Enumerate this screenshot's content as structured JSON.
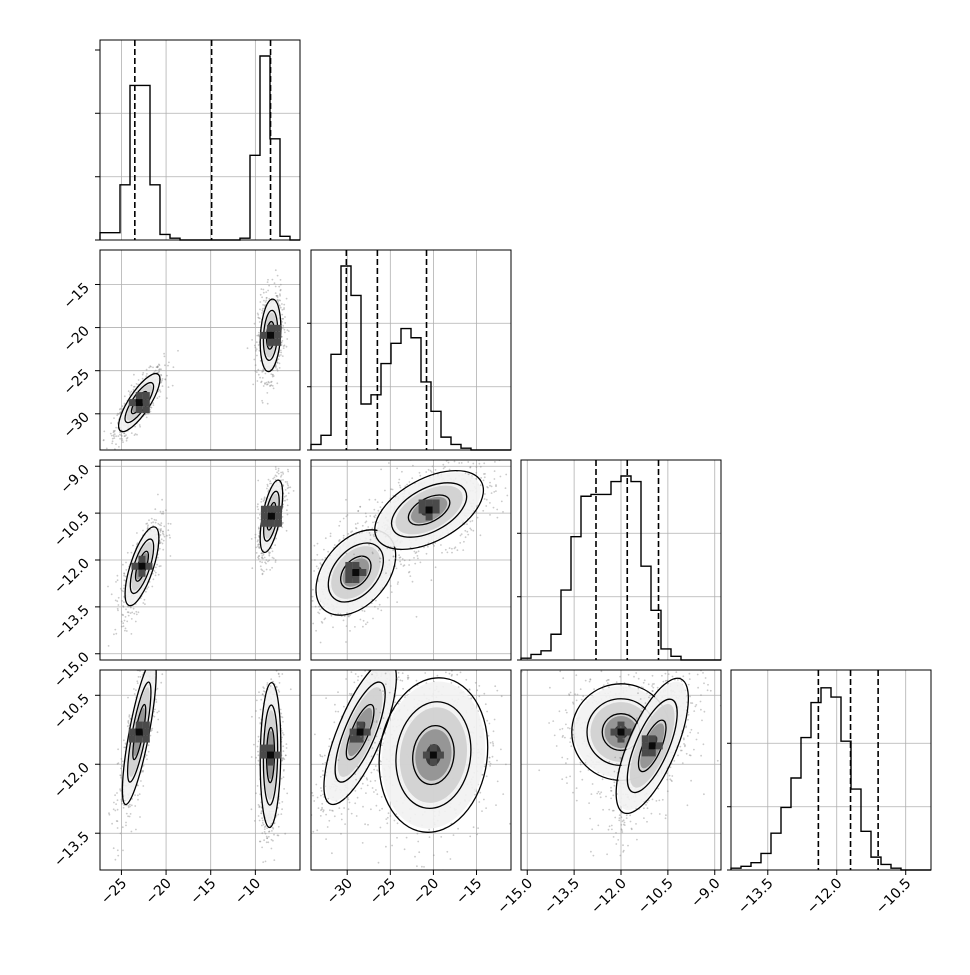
{
  "chart_data": {
    "type": "corner",
    "description_note": "",
    "variables": [
      {
        "ticks": [
          "−25",
          "−20",
          "−15",
          "−10"
        ],
        "tick_values": [
          -25,
          -20,
          -15,
          -10
        ],
        "range": [
          -27.4,
          -5.0
        ]
      },
      {
        "ticks": [
          "−30",
          "−25",
          "−20",
          "−15"
        ],
        "tick_values": [
          -30,
          -25,
          -20,
          -15
        ],
        "range": [
          -34.2,
          -11.0
        ]
      },
      {
        "ticks": [
          "−15.0",
          "−13.5",
          "−12.0",
          "−10.5",
          "−9.0"
        ],
        "tick_values": [
          -15.0,
          -13.5,
          -12.0,
          -10.5,
          -9.0
        ],
        "range": [
          -15.2,
          -8.8
        ]
      },
      {
        "ticks": [
          "−13.5",
          "−12.0",
          "−10.5"
        ],
        "tick_values": [
          -13.5,
          -12.0,
          -10.5
        ],
        "range": [
          -14.3,
          -9.95
        ]
      }
    ],
    "y_ticks": [
      null,
      {
        "labels": [
          "−15",
          "−20",
          "−25",
          "−30"
        ],
        "values": [
          -15,
          -20,
          -25,
          -30
        ]
      },
      {
        "labels": [
          "−9.0",
          "−10.5",
          "−12.0",
          "−13.5",
          "−15.0"
        ],
        "values": [
          -9.0,
          -10.5,
          -12.0,
          -13.5,
          -15.0
        ]
      },
      {
        "labels": [
          "−10.5",
          "−12.0",
          "−13.5"
        ],
        "values": [
          -10.5,
          -12.0,
          -13.5
        ]
      }
    ],
    "histograms": [
      {
        "bins": [
          -27.4,
          -5.0
        ],
        "nbins": 20,
        "counts": [
          0.04,
          0.04,
          0.3,
          0.84,
          0.84,
          0.3,
          0.03,
          0.01,
          0.0,
          0.0,
          0.0,
          0.0,
          0.0,
          0.0,
          0.01,
          0.46,
          1.0,
          0.55,
          0.02,
          0.0
        ],
        "quantiles": [
          -23.5,
          -14.9,
          -8.3
        ]
      },
      {
        "bins": [
          -34.2,
          -11.0
        ],
        "nbins": 20,
        "counts": [
          0.03,
          0.08,
          0.52,
          1.0,
          0.84,
          0.25,
          0.3,
          0.47,
          0.58,
          0.66,
          0.61,
          0.37,
          0.21,
          0.07,
          0.03,
          0.01,
          0.0,
          0.0,
          0.0,
          0.0
        ],
        "quantiles": [
          -30.1,
          -26.5,
          -20.8
        ]
      },
      {
        "bins": [
          -15.2,
          -8.8
        ],
        "nbins": 20,
        "counts": [
          0.01,
          0.03,
          0.05,
          0.14,
          0.38,
          0.67,
          0.89,
          0.9,
          0.9,
          0.97,
          1.0,
          0.97,
          0.51,
          0.27,
          0.06,
          0.02,
          0.0,
          0.0,
          0.0,
          0.0
        ],
        "quantiles": [
          -12.8,
          -11.8,
          -10.8
        ]
      },
      {
        "bins": [
          -14.3,
          -9.95
        ],
        "nbins": 20,
        "counts": [
          0.01,
          0.02,
          0.04,
          0.09,
          0.2,
          0.34,
          0.5,
          0.72,
          0.91,
          0.99,
          0.94,
          0.7,
          0.44,
          0.21,
          0.07,
          0.03,
          0.01,
          0.0,
          0.0,
          0.0
        ],
        "quantiles": [
          -12.4,
          -11.7,
          -11.1
        ]
      }
    ],
    "clusters": [
      {
        "row": 1,
        "col": 0,
        "blobs": [
          {
            "cx": -23.0,
            "cy": -28.7,
            "sx": 1.1,
            "sy": 1.6,
            "rho": 0.8,
            "w": 1.0
          },
          {
            "cx": -8.3,
            "cy": -20.9,
            "sx": 0.55,
            "sy": 2.0,
            "rho": 0.2,
            "w": 1.0
          }
        ]
      },
      {
        "row": 2,
        "col": 0,
        "blobs": [
          {
            "cx": -22.7,
            "cy": -12.2,
            "sx": 0.9,
            "sy": 0.6,
            "rho": 0.7,
            "w": 1.0
          },
          {
            "cx": -8.2,
            "cy": -10.6,
            "sx": 0.6,
            "sy": 0.55,
            "rho": 0.6,
            "w": 1.0
          }
        ]
      },
      {
        "row": 2,
        "col": 1,
        "blobs": [
          {
            "cx": -29.0,
            "cy": -12.4,
            "sx": 2.2,
            "sy": 0.65,
            "rho": 0.4,
            "w": 1.0
          },
          {
            "cx": -20.5,
            "cy": -10.4,
            "sx": 3.0,
            "sy": 0.6,
            "rho": 0.5,
            "w": 0.9
          }
        ]
      },
      {
        "row": 3,
        "col": 0,
        "blobs": [
          {
            "cx": -23.0,
            "cy": -11.3,
            "sx": 0.9,
            "sy": 0.75,
            "rho": 0.8,
            "w": 1.0
          },
          {
            "cx": -8.3,
            "cy": -11.8,
            "sx": 0.55,
            "sy": 0.75,
            "rho": 0.1,
            "w": 1.0
          }
        ]
      },
      {
        "row": 3,
        "col": 1,
        "blobs": [
          {
            "cx": -28.5,
            "cy": -11.3,
            "sx": 2.0,
            "sy": 0.75,
            "rho": 0.75,
            "w": 1.0
          },
          {
            "cx": -20.0,
            "cy": -11.8,
            "sx": 3.0,
            "sy": 0.8,
            "rho": 0.1,
            "w": 0.75
          }
        ]
      },
      {
        "row": 3,
        "col": 2,
        "blobs": [
          {
            "cx": -12.0,
            "cy": -11.3,
            "sx": 0.75,
            "sy": 0.5,
            "rho": 0.0,
            "w": 0.9
          },
          {
            "cx": -11.0,
            "cy": -11.6,
            "sx": 0.55,
            "sy": 0.7,
            "rho": 0.7,
            "w": 1.0
          }
        ]
      }
    ],
    "grid": true,
    "colors": {
      "line": "#000000",
      "grid": "#b0b0b0",
      "scatter": "#8a8a8a"
    }
  }
}
